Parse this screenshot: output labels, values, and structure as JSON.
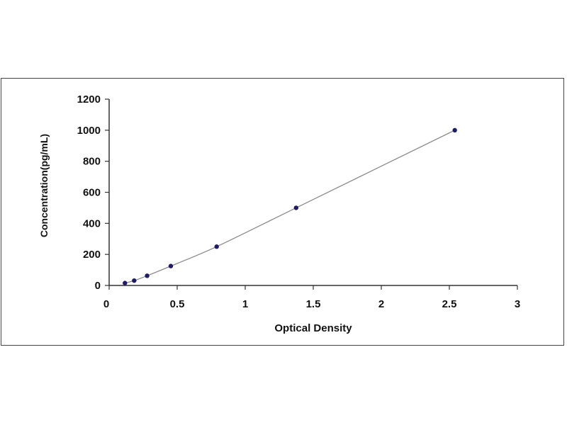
{
  "chart_data": {
    "type": "scatter",
    "title": "",
    "xlabel": "Optical Density",
    "ylabel": "Concentration(pg/mL)",
    "xlim": [
      0,
      3
    ],
    "ylim": [
      0,
      1200
    ],
    "xticks": [
      "0",
      "0.5",
      "1",
      "1.5",
      "2",
      "2.5",
      "3"
    ],
    "yticks": [
      "0",
      "200",
      "400",
      "600",
      "800",
      "1000",
      "1200"
    ],
    "grid": false,
    "trendline": true,
    "series": [
      {
        "x": [
          0.116,
          0.184,
          0.279,
          0.453,
          0.79,
          1.374,
          2.54
        ],
        "y": [
          15.6,
          31.25,
          62.5,
          125,
          250,
          500,
          1000
        ]
      }
    ],
    "colors": {
      "points": "#1c1c6b",
      "line": "#8a8a8a",
      "axis": "#333333"
    }
  }
}
